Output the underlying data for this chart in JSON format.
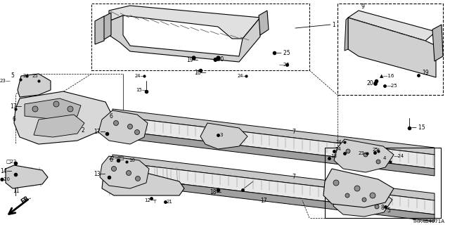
{
  "bg_color": "#ffffff",
  "line_color": "#000000",
  "diagram_code": "THR4B4071A",
  "gray_light": "#c8c8c8",
  "gray_med": "#a0a0a0",
  "gray_dark": "#707070"
}
